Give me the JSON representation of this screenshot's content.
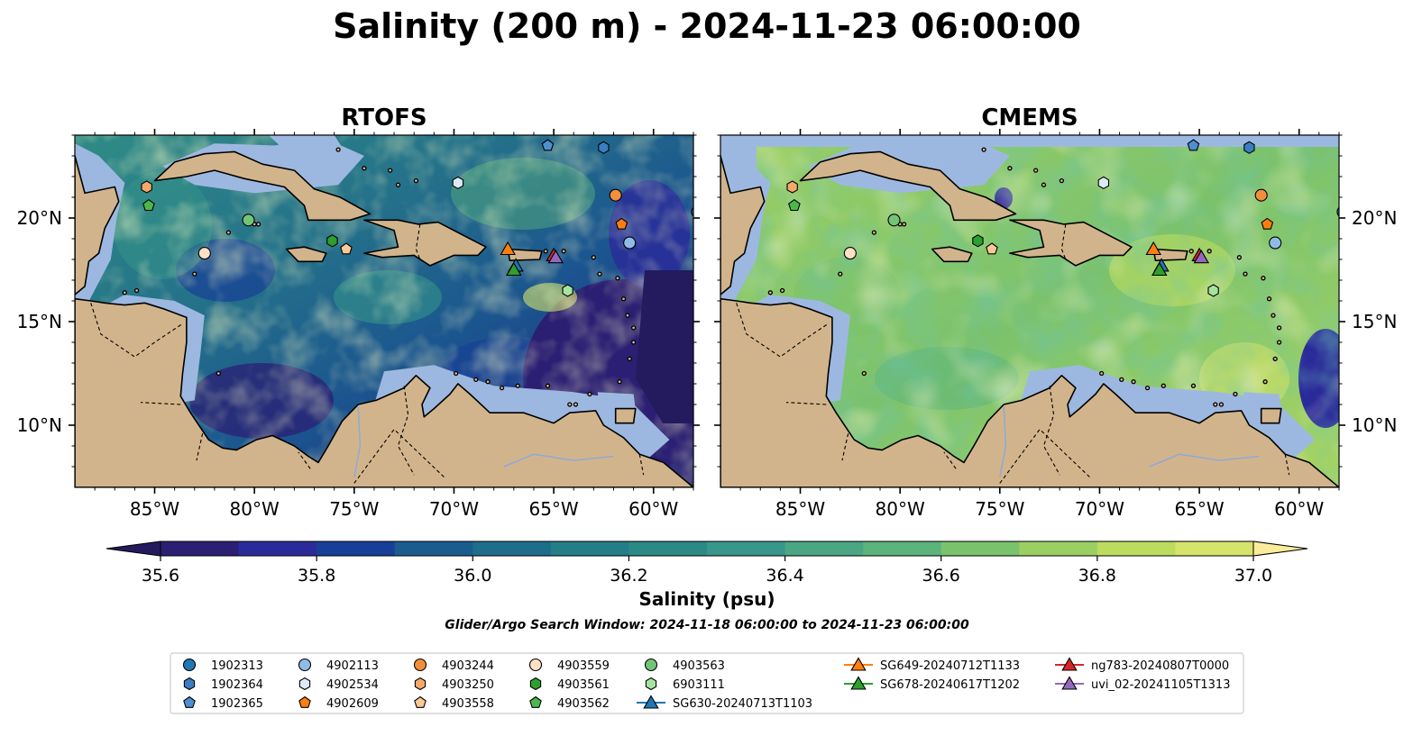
{
  "figure": {
    "title": "Salinity (200 m) - 2024-11-23 06:00:00",
    "subtitle": "Glider/Argo Search Window: 2024-11-18 06:00:00 to 2024-11-23 06:00:00"
  },
  "panels": [
    {
      "title": "RTOFS",
      "variant": "low"
    },
    {
      "title": "CMEMS",
      "variant": "high"
    }
  ],
  "axes": {
    "lon_range": [
      -89.0,
      -58.0
    ],
    "lat_range": [
      7.0,
      24.0
    ],
    "x_ticks": [
      {
        "lon": -85,
        "label": "85°W"
      },
      {
        "lon": -80,
        "label": "80°W"
      },
      {
        "lon": -75,
        "label": "75°W"
      },
      {
        "lon": -70,
        "label": "70°W"
      },
      {
        "lon": -65,
        "label": "65°W"
      },
      {
        "lon": -60,
        "label": "60°W"
      }
    ],
    "y_ticks": [
      {
        "lat": 20,
        "label": "20°N"
      },
      {
        "lat": 15,
        "label": "15°N"
      },
      {
        "lat": 10,
        "label": "10°N"
      }
    ]
  },
  "colorbar": {
    "label": "Salinity (psu)",
    "vmin": 35.6,
    "vmax": 37.0,
    "levels": [
      35.6,
      35.7,
      35.8,
      35.9,
      36.0,
      36.1,
      36.2,
      36.3,
      36.4,
      36.5,
      36.6,
      36.7,
      36.8,
      36.9,
      37.0
    ],
    "colors": [
      "#2b1f73",
      "#2b2a9a",
      "#183f97",
      "#1b5c8f",
      "#1e6e8b",
      "#257d88",
      "#2b8a86",
      "#37978a",
      "#4aa683",
      "#5cb37c",
      "#7bc26d",
      "#9ccf63",
      "#bcdc5f",
      "#d6e46b"
    ],
    "under_color": "#241a5e",
    "over_color": "#fbec9c",
    "ticks": [
      {
        "value": 35.6,
        "label": "35.6"
      },
      {
        "value": 35.8,
        "label": "35.8"
      },
      {
        "value": 36.0,
        "label": "36.0"
      },
      {
        "value": 36.2,
        "label": "36.2"
      },
      {
        "value": 36.4,
        "label": "36.4"
      },
      {
        "value": 36.6,
        "label": "36.6"
      },
      {
        "value": 36.8,
        "label": "36.8"
      },
      {
        "value": 37.0,
        "label": "37.0"
      }
    ]
  },
  "map_colors": {
    "land": "#d2b48c",
    "shelf": "#9db8e0",
    "coast": "#000000",
    "river": "#8fa9d6"
  },
  "observations": [
    {
      "id": "1902313",
      "marker": "circle",
      "color": "#1f77b4",
      "kind": "argo",
      "lon": -57.8,
      "lat": 20.3
    },
    {
      "id": "1902364",
      "marker": "hexagon",
      "color": "#3a7dc0",
      "kind": "argo",
      "lon": -62.5,
      "lat": 23.4
    },
    {
      "id": "1902365",
      "marker": "pentagon",
      "color": "#4f8fd0",
      "kind": "argo",
      "lon": -65.3,
      "lat": 23.5
    },
    {
      "id": "4902113",
      "marker": "circle",
      "color": "#8fbce6",
      "kind": "argo",
      "lon": -61.2,
      "lat": 18.8
    },
    {
      "id": "4902534",
      "marker": "hexagon",
      "color": "#dce9f7",
      "kind": "argo",
      "lon": -69.8,
      "lat": 21.7
    },
    {
      "id": "4902609",
      "marker": "pentagon",
      "color": "#ff7f0e",
      "kind": "argo",
      "lon": -61.6,
      "lat": 19.7
    },
    {
      "id": "4903244",
      "marker": "circle",
      "color": "#f28e3c",
      "kind": "argo",
      "lon": -61.9,
      "lat": 21.1
    },
    {
      "id": "4903250",
      "marker": "hexagon",
      "color": "#f5a86a",
      "kind": "argo",
      "lon": -85.4,
      "lat": 21.5
    },
    {
      "id": "4903558",
      "marker": "pentagon",
      "color": "#fbc994",
      "kind": "argo",
      "lon": -75.4,
      "lat": 18.5
    },
    {
      "id": "4903559",
      "marker": "circle",
      "color": "#fde0c5",
      "kind": "argo",
      "lon": -82.5,
      "lat": 18.3
    },
    {
      "id": "4903561",
      "marker": "hexagon",
      "color": "#2ca02c",
      "kind": "argo",
      "lon": -76.1,
      "lat": 18.9
    },
    {
      "id": "4903562",
      "marker": "pentagon",
      "color": "#4cb84c",
      "kind": "argo",
      "lon": -85.3,
      "lat": 20.6
    },
    {
      "id": "4903563",
      "marker": "circle",
      "color": "#74c476",
      "kind": "argo",
      "lon": -80.3,
      "lat": 19.9
    },
    {
      "id": "6903111",
      "marker": "hexagon",
      "color": "#a6e3a1",
      "kind": "argo",
      "lon": -64.3,
      "lat": 16.5
    },
    {
      "id": "SG630-20240713T1103",
      "marker": "triangle",
      "color": "#1f77b4",
      "kind": "glider",
      "lon": -66.9,
      "lat": 17.7
    },
    {
      "id": "SG649-20240712T1133",
      "marker": "triangle",
      "color": "#ff7f0e",
      "kind": "glider",
      "lon": -67.3,
      "lat": 18.5
    },
    {
      "id": "SG678-20240617T1202",
      "marker": "triangle",
      "color": "#2ca02c",
      "kind": "glider",
      "lon": -67.0,
      "lat": 17.5
    },
    {
      "id": "ng783-20240807T0000",
      "marker": "triangle",
      "color": "#d62728",
      "kind": "glider",
      "lon": -65.0,
      "lat": 18.2
    },
    {
      "id": "uvi_02-20241105T1313",
      "marker": "triangle",
      "color": "#9467bd",
      "kind": "glider",
      "lon": -64.9,
      "lat": 18.1
    }
  ]
}
